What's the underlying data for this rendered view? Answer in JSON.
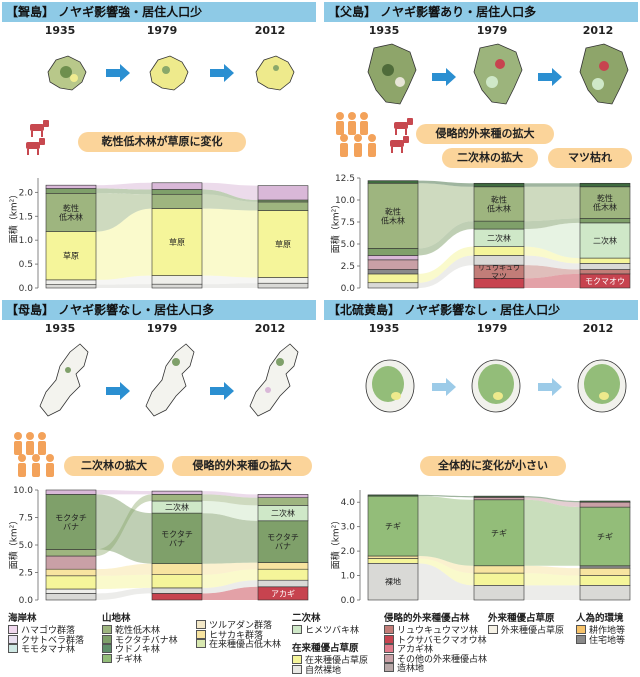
{
  "years": [
    "1935",
    "1979",
    "2012"
  ],
  "panels": [
    {
      "id": "mukojima",
      "title": "【聟島】 ノヤギ影響強・居住人口少",
      "bubbles": [
        "乾性低木林が草原に変化"
      ],
      "ylabel": "面積（km²）",
      "chart_data": {
        "type": "alluvial",
        "ylim": [
          0,
          2.3
        ],
        "yticks": [
          "0.0",
          "0.5",
          "1.0",
          "1.5",
          "2.0"
        ],
        "columns": [
          {
            "year": "1935",
            "segments": [
              {
                "cls": "rock",
                "value": 0.07
              },
              {
                "cls": "rock_light",
                "value": 0.1
              },
              {
                "cls": "meadow",
                "value": 1.01,
                "label": "草原"
              },
              {
                "cls": "dry",
                "value": 0.8,
                "label": "乾性\n低木林"
              },
              {
                "cls": "mokutachi",
                "value": 0.1
              },
              {
                "cls": "pink",
                "value": 0.07
              }
            ]
          },
          {
            "year": "1979",
            "segments": [
              {
                "cls": "rock",
                "value": 0.08
              },
              {
                "cls": "rock_light",
                "value": 0.18
              },
              {
                "cls": "meadow",
                "value": 1.4,
                "label": "草原"
              },
              {
                "cls": "dry",
                "value": 0.3
              },
              {
                "cls": "mokutachi",
                "value": 0.1
              },
              {
                "cls": "pink",
                "value": 0.14
              }
            ]
          },
          {
            "year": "2012",
            "segments": [
              {
                "cls": "rock",
                "value": 0.1
              },
              {
                "cls": "rock_light",
                "value": 0.12
              },
              {
                "cls": "meadow",
                "value": 1.4,
                "label": "草原"
              },
              {
                "cls": "dry",
                "value": 0.18
              },
              {
                "cls": "mokutachi",
                "value": 0.04
              },
              {
                "cls": "pink",
                "value": 0.3
              }
            ]
          }
        ]
      }
    },
    {
      "id": "chichijima",
      "title": "【父島】 ノヤギ影響あり・居住人口多",
      "bubbles": [
        "侵略的外来種の拡大",
        "二次林の拡大",
        "マツ枯れ"
      ],
      "ylabel": "面積（km²）",
      "chart_data": {
        "type": "alluvial",
        "ylim": [
          0,
          12.5
        ],
        "yticks": [
          "0.0",
          "2.5",
          "5.0",
          "7.5",
          "10.0",
          "12.5"
        ],
        "columns": [
          {
            "year": "1935",
            "segments": [
              {
                "cls": "rock",
                "value": 0.6
              },
              {
                "cls": "meadow",
                "value": 1.0
              },
              {
                "cls": "residential",
                "value": 0.5
              },
              {
                "cls": "mauve",
                "value": 1.1
              },
              {
                "cls": "pink",
                "value": 0.5
              },
              {
                "cls": "mokutachi",
                "value": 0.8
              },
              {
                "cls": "dry",
                "value": 7.4,
                "label": "乾性\n低木林"
              },
              {
                "cls": "pine",
                "value": 0.3
              }
            ]
          },
          {
            "year": "1979",
            "segments": [
              {
                "cls": "invasive",
                "value": 1.1
              },
              {
                "cls": "ryukyu",
                "value": 1.5,
                "label": "リュウキュウ\nマツ"
              },
              {
                "cls": "rock",
                "value": 1.1
              },
              {
                "cls": "meadow",
                "value": 1.0
              },
              {
                "cls": "secondary",
                "value": 2.0,
                "label": "二次林"
              },
              {
                "cls": "mokutachi",
                "value": 0.9
              },
              {
                "cls": "dry",
                "value": 3.9,
                "label": "乾性\n低木林"
              },
              {
                "cls": "pine",
                "value": 0.4
              }
            ]
          },
          {
            "year": "2012",
            "segments": [
              {
                "cls": "invasive",
                "value": 1.6,
                "label": "モクマオウ"
              },
              {
                "cls": "ryukyu",
                "value": 0.5
              },
              {
                "cls": "rock",
                "value": 0.7
              },
              {
                "cls": "meadow",
                "value": 0.6
              },
              {
                "cls": "secondary",
                "value": 4.0,
                "label": "二次林"
              },
              {
                "cls": "mokutachi",
                "value": 0.5
              },
              {
                "cls": "dry",
                "value": 3.6,
                "label": "乾性\n低木林"
              },
              {
                "cls": "pine",
                "value": 0.4
              }
            ]
          }
        ]
      }
    },
    {
      "id": "hahajima",
      "title": "【母島】 ノヤギ影響なし・居住人口多",
      "bubbles": [
        "二次林の拡大",
        "侵略的外来種の拡大"
      ],
      "ylabel": "面積（km²）",
      "chart_data": {
        "type": "alluvial",
        "ylim": [
          0,
          10
        ],
        "yticks": [
          "0.0",
          "2.5",
          "5.0",
          "7.5",
          "10.0"
        ],
        "columns": [
          {
            "year": "1935",
            "segments": [
              {
                "cls": "rock",
                "value": 0.6
              },
              {
                "cls": "rock_light",
                "value": 0.4
              },
              {
                "cls": "meadow",
                "value": 1.2
              },
              {
                "cls": "hisakaki",
                "value": 0.6
              },
              {
                "cls": "mauve",
                "value": 1.2
              },
              {
                "cls": "dry",
                "value": 0.6
              },
              {
                "cls": "mokutachi",
                "value": 5.0,
                "label": "モクタチ\nバナ"
              },
              {
                "cls": "pink",
                "value": 0.4
              }
            ]
          },
          {
            "year": "1979",
            "segments": [
              {
                "cls": "invasive",
                "value": 0.6
              },
              {
                "cls": "rock",
                "value": 0.5
              },
              {
                "cls": "meadow",
                "value": 1.2
              },
              {
                "cls": "hisakaki",
                "value": 1.0
              },
              {
                "cls": "mokutachi",
                "value": 4.6,
                "label": "モクタチ\nバナ"
              },
              {
                "cls": "secondary",
                "value": 1.1,
                "label": "二次林"
              },
              {
                "cls": "dry",
                "value": 0.6
              },
              {
                "cls": "pink",
                "value": 0.3
              }
            ]
          },
          {
            "year": "2012",
            "segments": [
              {
                "cls": "invasive",
                "value": 1.2,
                "label": "アカギ"
              },
              {
                "cls": "rock",
                "value": 0.6
              },
              {
                "cls": "meadow",
                "value": 1.0
              },
              {
                "cls": "hisakaki",
                "value": 0.6
              },
              {
                "cls": "mokutachi",
                "value": 3.8,
                "label": "モクタチ\nバナ"
              },
              {
                "cls": "secondary",
                "value": 1.4,
                "label": "二次林"
              },
              {
                "cls": "dry",
                "value": 0.7
              },
              {
                "cls": "pink",
                "value": 0.3
              }
            ]
          }
        ]
      }
    },
    {
      "id": "kitaioto",
      "title": "【北硫黄島】 ノヤギ影響なし・居住人口少",
      "bubbles": [
        "全体的に変化が小さい"
      ],
      "ylabel": "面積（km²）",
      "chart_data": {
        "type": "alluvial",
        "ylim": [
          0,
          4.5
        ],
        "yticks": [
          "0.0",
          "1.0",
          "2.0",
          "3.0",
          "4.0"
        ],
        "columns": [
          {
            "year": "1935",
            "segments": [
              {
                "cls": "rock",
                "value": 1.5,
                "label": "裸地"
              },
              {
                "cls": "meadow",
                "value": 0.2
              },
              {
                "cls": "hisakaki",
                "value": 0.1
              },
              {
                "cls": "chigi",
                "value": 2.45,
                "label": "チギ"
              },
              {
                "cls": "pine",
                "value": 0.05
              }
            ]
          },
          {
            "year": "1979",
            "segments": [
              {
                "cls": "rock",
                "value": 0.6
              },
              {
                "cls": "meadow",
                "value": 0.5
              },
              {
                "cls": "hisakaki",
                "value": 0.3
              },
              {
                "cls": "chigi",
                "value": 2.7,
                "label": "チギ"
              },
              {
                "cls": "mauve",
                "value": 0.1
              },
              {
                "cls": "pine",
                "value": 0.05
              }
            ]
          },
          {
            "year": "2012",
            "segments": [
              {
                "cls": "rock",
                "value": 0.6
              },
              {
                "cls": "meadow",
                "value": 0.4
              },
              {
                "cls": "hisakaki",
                "value": 0.3
              },
              {
                "cls": "residential",
                "value": 0.1
              },
              {
                "cls": "chigi",
                "value": 2.4,
                "label": "チギ"
              },
              {
                "cls": "mauve",
                "value": 0.2
              },
              {
                "cls": "pine",
                "value": 0.05
              }
            ]
          }
        ]
      }
    }
  ],
  "colors": {
    "rock": "#d9d9d6",
    "rock_light": "#eeeeea",
    "meadow": "#f5f59a",
    "dry": "#9eb57f",
    "mokutachi": "#7fa06a",
    "chigi": "#93bd79",
    "secondary": "#cfe8c8",
    "pink": "#d9b8d8",
    "mauve": "#c9a0a6",
    "invasive": "#c7434f",
    "ryukyu": "#c27d78",
    "pine": "#3f6b3f",
    "hisakaki": "#f8e4a0",
    "residential": "#8a8a8a",
    "bubble": "#fbd49a",
    "header": "#8ecae6",
    "arrow": "#2b8fd1"
  },
  "legend": {
    "coast": {
      "title": "海岸林",
      "items": [
        "ハマゴウ群落",
        "クサトベラ群落",
        "モモタマナ林"
      ]
    },
    "mountain": {
      "title": "山地林",
      "items": [
        "乾性低木林",
        "モクタチバナ林",
        "ウドノキ林",
        "チギ林"
      ]
    },
    "mountain2": {
      "items": [
        "ツルアダン群落",
        "ヒサカキ群落",
        "在来種優占低木林"
      ]
    },
    "secondary": {
      "title": "二次林",
      "items": [
        "ヒメツバキ林"
      ]
    },
    "native_grass": {
      "title": "在来種優占草原",
      "items": [
        "在来種優占草原",
        "自然裸地"
      ]
    },
    "invasive": {
      "title": "侵略的外来種優占林",
      "items": [
        "リュウキュウマツ林",
        "トクサバモクマオウ林",
        "アカギ林",
        "その他の外来種優占林",
        "造林地"
      ]
    },
    "alien_grass": {
      "title": "外来種優占草原",
      "items": [
        "外来種優占草原"
      ]
    },
    "human": {
      "title": "人為的環境",
      "items": [
        "耕作地等",
        "住宅地等"
      ]
    }
  }
}
